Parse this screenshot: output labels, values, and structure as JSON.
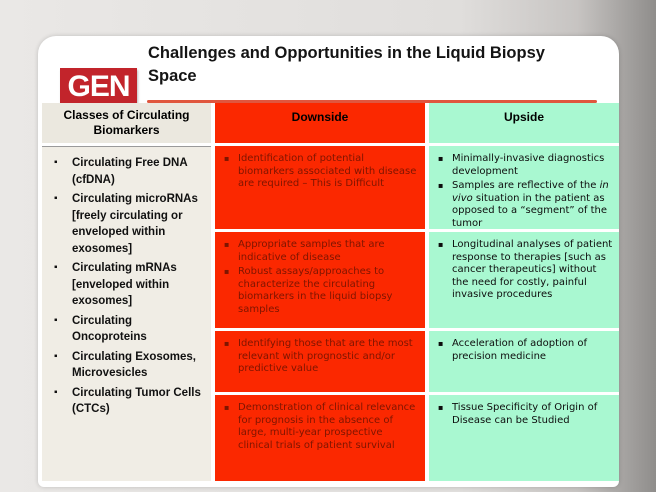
{
  "slide": {
    "logo_text": "GEN",
    "title": "Challenges and Opportunities in the Liquid Biopsy Space"
  },
  "table": {
    "headers": {
      "col1": "Classes of Circulating Biomarkers",
      "col2": "Downside",
      "col3": "Upside"
    },
    "biomarkers": [
      "Circulating Free DNA (cfDNA)",
      "Circulating microRNAs [freely circulating or enveloped within exosomes]",
      "Circulating mRNAs [enveloped within exosomes]",
      "Circulating Oncoproteins",
      "Circulating Exosomes, Microvesicles",
      "Circulating Tumor Cells (CTCs)"
    ],
    "downside": {
      "row1": [
        "Identification of potential biomarkers associated with disease are required – This is Difficult"
      ],
      "row2": [
        "Appropriate samples that are indicative of disease",
        "Robust assays/approaches to characterize the circulating biomarkers in the liquid biopsy samples"
      ],
      "row3": [
        "Identifying those that are the most relevant with prognostic and/or predictive value"
      ],
      "row4": [
        "Demonstration of clinical relevance for prognosis in the absence of large, multi-year prospective clinical trials of patient survival"
      ]
    },
    "upside": {
      "row1_item1": "Minimally-invasive diagnostics development",
      "row1_item2_pre": "Samples are reflective of the ",
      "row1_item2_italic": "in vivo",
      "row1_item2_post": " situation in the patient as opposed to a “segment” of the tumor",
      "row2": [
        "Longitudinal analyses of patient response to therapies [such as cancer therapeutics] without the need for costly, painful invasive procedures"
      ],
      "row3": [
        "Acceleration of adoption of precision medicine"
      ],
      "row4": [
        "Tissue Specificity of Origin of Disease can be Studied"
      ]
    }
  },
  "colors": {
    "brand_red": "#c2242b",
    "downside_bg": "#fb2800",
    "downside_text": "#7e1500",
    "upside_bg": "#a9f8d1",
    "left_column_bg": "#f0ede5",
    "title_underline": "#e0563e"
  }
}
